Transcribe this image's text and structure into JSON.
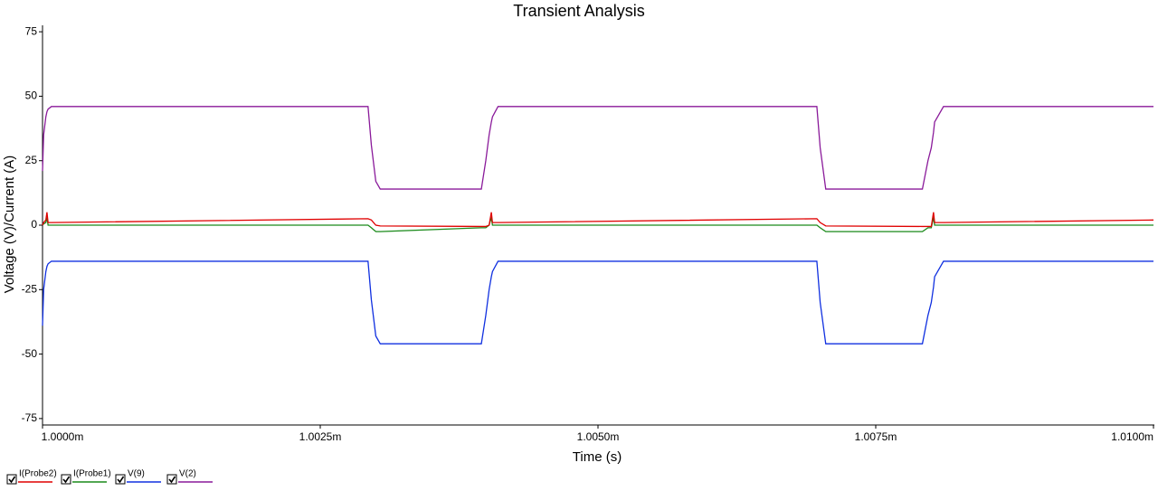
{
  "chart_data": {
    "type": "line",
    "title": "Transient Analysis",
    "x_label": "Time (s)",
    "y_label": "Voltage (V)/Current (A)",
    "x": [
      0.001,
      0.00100001,
      0.00100003,
      0.00100004,
      0.00100005,
      0.00100008,
      0.00100293,
      0.00100296,
      0.001003,
      0.00100304,
      0.00100395,
      0.00100399,
      0.00100402,
      0.00100404,
      0.00100405,
      0.0010041,
      0.00100697,
      0.001007,
      0.00100705,
      0.00100792,
      0.00100797,
      0.001008,
      0.00100802,
      0.00100803,
      0.00100811,
      0.00101
    ],
    "series": [
      {
        "name": "I(Probe2)",
        "color": "#e00000",
        "values": [
          0,
          1,
          2,
          5,
          1,
          1,
          2.5,
          2,
          0,
          -0.3,
          -0.5,
          -0.5,
          0,
          5,
          1,
          1,
          2.5,
          1,
          -0.3,
          -0.5,
          -0.5,
          -0.5,
          5,
          1,
          1,
          2
        ]
      },
      {
        "name": "I(Probe1)",
        "color": "#1a8a1a",
        "values": [
          0,
          0.5,
          1,
          3,
          0,
          0,
          0,
          -1,
          -2.5,
          -2.5,
          -1,
          -1,
          0,
          3,
          0,
          0,
          0,
          -1,
          -2.5,
          -2.5,
          -1,
          -1,
          3,
          0,
          0,
          0
        ]
      },
      {
        "name": "V(9)",
        "color": "#1030e0",
        "values": [
          -39,
          -25,
          -18,
          -16,
          -15,
          -14,
          -14,
          -29,
          -43,
          -46,
          -46,
          -35,
          -25,
          -20,
          -18,
          -14,
          -14,
          -30,
          -46,
          -46,
          -35,
          -30,
          -24,
          -20,
          -14,
          -14
        ]
      },
      {
        "name": "V(2)",
        "color": "#8a1a9a",
        "values": [
          21,
          35,
          42,
          44,
          45,
          46,
          46,
          31,
          17,
          14,
          14,
          25,
          35,
          40,
          42,
          46,
          46,
          30,
          14,
          14,
          25,
          30,
          36,
          40,
          46,
          46
        ]
      }
    ],
    "xlim": [
      0.001,
      0.00101
    ],
    "xticks": [
      {
        "value": 0.001,
        "label": "1.0000m"
      },
      {
        "value": 0.0010025,
        "label": "1.0025m"
      },
      {
        "value": 0.001005,
        "label": "1.0050m"
      },
      {
        "value": 0.0010075,
        "label": "1.0075m"
      },
      {
        "value": 0.00101,
        "label": "1.0100m"
      }
    ],
    "ylim": [
      -77.5,
      77.5
    ],
    "yticks": [
      -75,
      -50,
      -25,
      0,
      25,
      50,
      75
    ],
    "grid": false,
    "legend": "bottom-left"
  }
}
